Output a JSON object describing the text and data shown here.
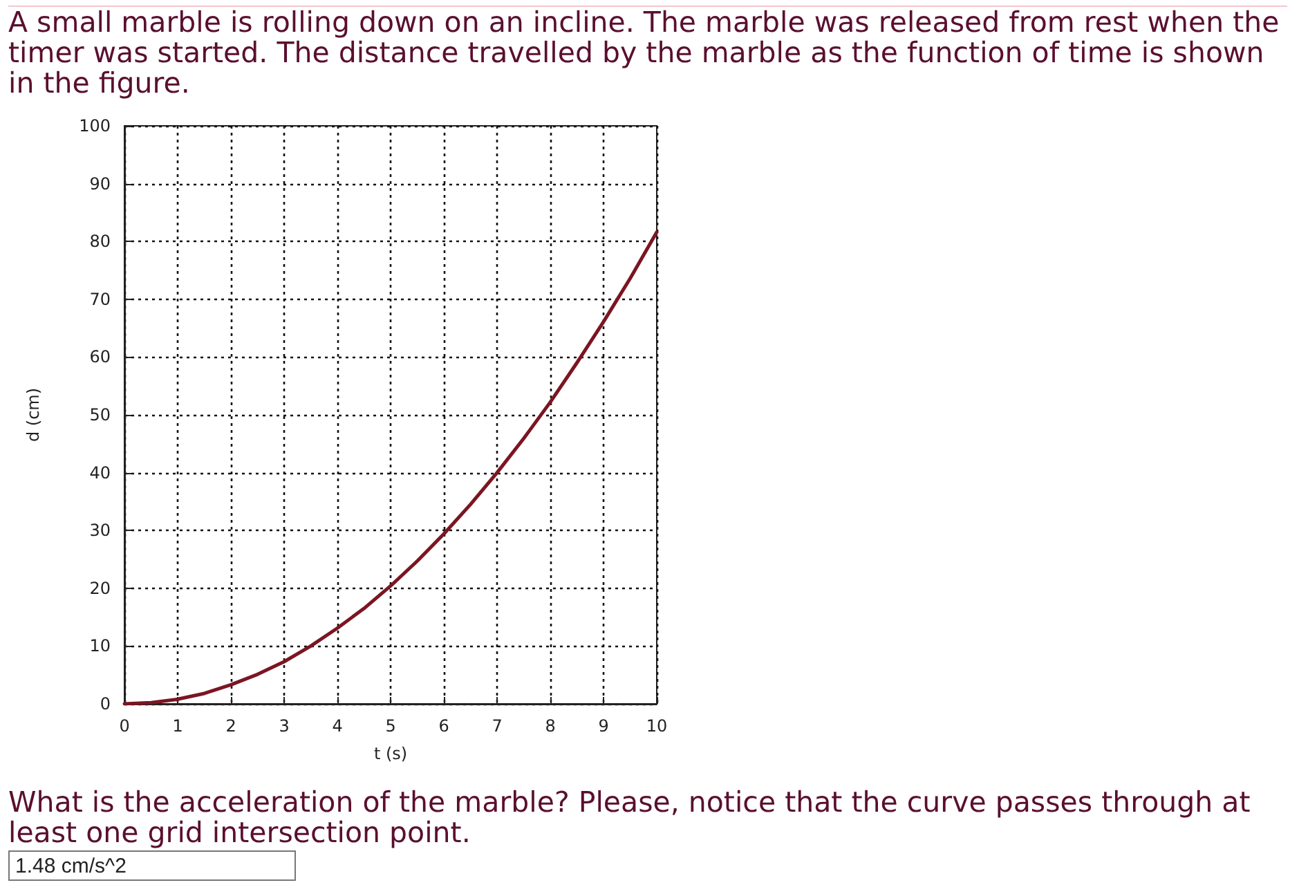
{
  "chart_data": {
    "type": "line",
    "title": "A small marble is rolling down on an incline. The marble was released from rest when the timer was started. The distance travelled by the marble as the function of time is shown in the figure.",
    "xlabel": "t (s)",
    "ylabel": "d (cm)",
    "x": [
      0,
      0.5,
      1,
      1.5,
      2,
      2.5,
      3,
      3.5,
      4,
      4.5,
      5,
      5.5,
      6,
      6.5,
      7,
      7.5,
      8,
      8.5,
      9,
      9.5,
      10
    ],
    "series": [
      {
        "color": "#7b1522",
        "values": [
          0,
          0.2,
          0.8,
          1.8,
          3.3,
          5.1,
          7.3,
          10,
          13.1,
          16.5,
          20.4,
          24.7,
          29.4,
          34.5,
          40,
          45.9,
          52.2,
          59,
          66.1,
          73.6,
          81.6
        ]
      }
    ],
    "xlim": [
      0,
      10
    ],
    "xticks": [
      0,
      1,
      2,
      3,
      4,
      5,
      6,
      7,
      8,
      9,
      10
    ],
    "ylim": [
      0,
      100
    ],
    "yticks": [
      0,
      10,
      20,
      30,
      40,
      50,
      60,
      70,
      80,
      90,
      100
    ],
    "grid": true,
    "marker": "none",
    "line_style": "solid",
    "annotations": [
      "What is the acceleration of the marble? Please, notice that the curve passes through at least one grid intersection point.",
      "1.48 cm/s^2"
    ]
  }
}
